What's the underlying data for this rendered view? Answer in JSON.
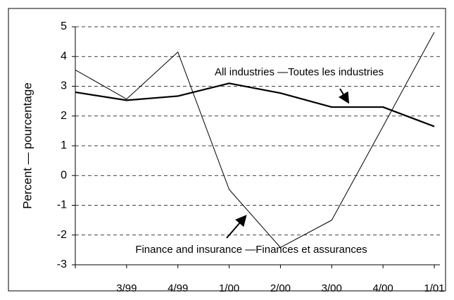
{
  "chart_data": {
    "type": "line",
    "y_label": "Percent — pourcentage",
    "categories": [
      null,
      "3/99",
      "4/99",
      "1/00",
      "2/00",
      "3/00",
      "4/00",
      "1/01"
    ],
    "series": [
      {
        "name": "All industries —Toutes les industries",
        "color": "#000000",
        "values": [
          2.8,
          2.53,
          2.67,
          3.1,
          2.77,
          2.3,
          2.3,
          1.65
        ]
      },
      {
        "name": "Finance and insurance —Finances et assurances",
        "color": "#000000",
        "values": [
          3.55,
          2.57,
          4.15,
          -0.47,
          -2.42,
          -1.5,
          1.65,
          4.82
        ]
      }
    ],
    "ylim": [
      -3,
      5
    ],
    "yticks": [
      -3,
      -2,
      -1,
      0,
      1,
      2,
      3,
      4,
      5
    ],
    "grid": true
  }
}
